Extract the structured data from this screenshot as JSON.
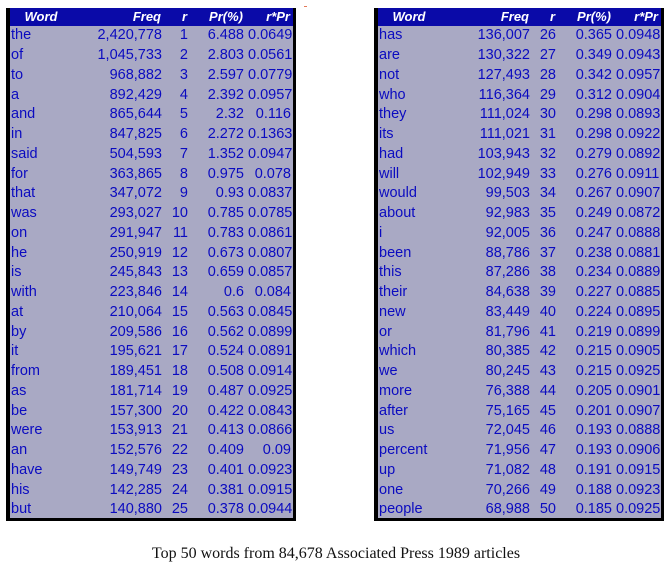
{
  "headers": {
    "word": "Word",
    "freq": "Freq",
    "r": "r",
    "pr": "Pr(%)",
    "rpr": "r*Pr"
  },
  "caption": "Top 50 words from 84,678 Associated Press 1989 articles",
  "colors": {
    "header_bg": "#0a0aa8",
    "header_text": "#ffffff",
    "table_bg": "#a9a9c4",
    "cell_text": "#0b0bc0"
  },
  "rows": [
    [
      "the",
      "2,420,778",
      "1",
      "6.488",
      "0.0649"
    ],
    [
      "of",
      "1,045,733",
      "2",
      "2.803",
      "0.0561"
    ],
    [
      "to",
      "968,882",
      "3",
      "2.597",
      "0.0779"
    ],
    [
      "a",
      "892,429",
      "4",
      "2.392",
      "0.0957"
    ],
    [
      "and",
      "865,644",
      "5",
      "2.32",
      "0.116"
    ],
    [
      "in",
      "847,825",
      "6",
      "2.272",
      "0.1363"
    ],
    [
      "said",
      "504,593",
      "7",
      "1.352",
      "0.0947"
    ],
    [
      "for",
      "363,865",
      "8",
      "0.975",
      "0.078"
    ],
    [
      "that",
      "347,072",
      "9",
      "0.93",
      "0.0837"
    ],
    [
      "was",
      "293,027",
      "10",
      "0.785",
      "0.0785"
    ],
    [
      "on",
      "291,947",
      "11",
      "0.783",
      "0.0861"
    ],
    [
      "he",
      "250,919",
      "12",
      "0.673",
      "0.0807"
    ],
    [
      "is",
      "245,843",
      "13",
      "0.659",
      "0.0857"
    ],
    [
      "with",
      "223,846",
      "14",
      "0.6",
      "0.084"
    ],
    [
      "at",
      "210,064",
      "15",
      "0.563",
      "0.0845"
    ],
    [
      "by",
      "209,586",
      "16",
      "0.562",
      "0.0899"
    ],
    [
      "it",
      "195,621",
      "17",
      "0.524",
      "0.0891"
    ],
    [
      "from",
      "189,451",
      "18",
      "0.508",
      "0.0914"
    ],
    [
      "as",
      "181,714",
      "19",
      "0.487",
      "0.0925"
    ],
    [
      "be",
      "157,300",
      "20",
      "0.422",
      "0.0843"
    ],
    [
      "were",
      "153,913",
      "21",
      "0.413",
      "0.0866"
    ],
    [
      "an",
      "152,576",
      "22",
      "0.409",
      "0.09"
    ],
    [
      "have",
      "149,749",
      "23",
      "0.401",
      "0.0923"
    ],
    [
      "his",
      "142,285",
      "24",
      "0.381",
      "0.0915"
    ],
    [
      "but",
      "140,880",
      "25",
      "0.378",
      "0.0944"
    ],
    [
      "has",
      "136,007",
      "26",
      "0.365",
      "0.0948"
    ],
    [
      "are",
      "130,322",
      "27",
      "0.349",
      "0.0943"
    ],
    [
      "not",
      "127,493",
      "28",
      "0.342",
      "0.0957"
    ],
    [
      "who",
      "116,364",
      "29",
      "0.312",
      "0.0904"
    ],
    [
      "they",
      "111,024",
      "30",
      "0.298",
      "0.0893"
    ],
    [
      "its",
      "111,021",
      "31",
      "0.298",
      "0.0922"
    ],
    [
      "had",
      "103,943",
      "32",
      "0.279",
      "0.0892"
    ],
    [
      "will",
      "102,949",
      "33",
      "0.276",
      "0.0911"
    ],
    [
      "would",
      "99,503",
      "34",
      "0.267",
      "0.0907"
    ],
    [
      "about",
      "92,983",
      "35",
      "0.249",
      "0.0872"
    ],
    [
      "i",
      "92,005",
      "36",
      "0.247",
      "0.0888"
    ],
    [
      "been",
      "88,786",
      "37",
      "0.238",
      "0.0881"
    ],
    [
      "this",
      "87,286",
      "38",
      "0.234",
      "0.0889"
    ],
    [
      "their",
      "84,638",
      "39",
      "0.227",
      "0.0885"
    ],
    [
      "new",
      "83,449",
      "40",
      "0.224",
      "0.0895"
    ],
    [
      "or",
      "81,796",
      "41",
      "0.219",
      "0.0899"
    ],
    [
      "which",
      "80,385",
      "42",
      "0.215",
      "0.0905"
    ],
    [
      "we",
      "80,245",
      "43",
      "0.215",
      "0.0925"
    ],
    [
      "more",
      "76,388",
      "44",
      "0.205",
      "0.0901"
    ],
    [
      "after",
      "75,165",
      "45",
      "0.201",
      "0.0907"
    ],
    [
      "us",
      "72,045",
      "46",
      "0.193",
      "0.0888"
    ],
    [
      "percent",
      "71,956",
      "47",
      "0.193",
      "0.0906"
    ],
    [
      "up",
      "71,082",
      "48",
      "0.191",
      "0.0915"
    ],
    [
      "one",
      "70,266",
      "49",
      "0.188",
      "0.0923"
    ],
    [
      "people",
      "68,988",
      "50",
      "0.185",
      "0.0925"
    ]
  ]
}
